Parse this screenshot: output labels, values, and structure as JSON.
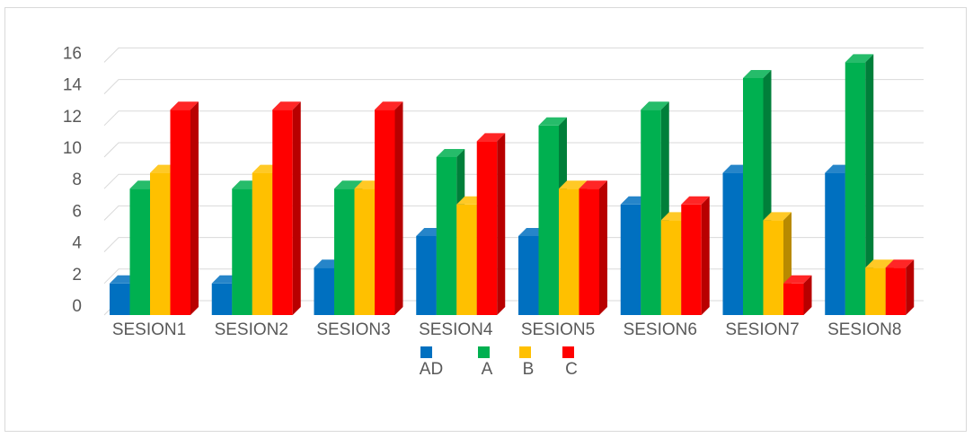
{
  "chart_data": {
    "type": "bar",
    "style": "3d-clustered-column",
    "title": "",
    "xlabel": "",
    "ylabel": "",
    "categories": [
      "SESION1",
      "SESION2",
      "SESION3",
      "SESION4",
      "SESION5",
      "SESION6",
      "SESION7",
      "SESION8"
    ],
    "series": [
      {
        "name": "AD",
        "color": "#0070C0",
        "values": [
          2,
          2,
          3,
          5,
          5,
          7,
          9,
          9
        ]
      },
      {
        "name": "A",
        "color": "#00B050",
        "values": [
          8,
          8,
          8,
          10,
          12,
          13,
          15,
          16
        ]
      },
      {
        "name": "B",
        "color": "#FFC000",
        "values": [
          9,
          9,
          8,
          7,
          8,
          6,
          6,
          3
        ]
      },
      {
        "name": "C",
        "color": "#FF0000",
        "values": [
          13,
          13,
          13,
          11,
          8,
          7,
          2,
          3
        ]
      }
    ],
    "y_tick_labels": [
      "0",
      "2",
      "4",
      "6",
      "8",
      "10",
      "12",
      "14",
      "16"
    ],
    "ylim": [
      0,
      16
    ],
    "grid": true,
    "legend_position": "bottom"
  }
}
